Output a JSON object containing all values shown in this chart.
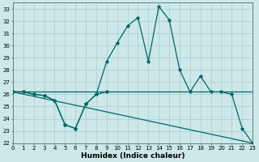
{
  "title": "",
  "xlabel": "Humidex (Indice chaleur)",
  "background_color": "#cce8e8",
  "grid_color": "#aacaca",
  "line_color": "#006868",
  "series_main": {
    "x": [
      0,
      1,
      2,
      3,
      4,
      5,
      6,
      7,
      8,
      9,
      10,
      11,
      12,
      13,
      14,
      15,
      16,
      17,
      18,
      19,
      20,
      21,
      22,
      23
    ],
    "y": [
      26.2,
      26.2,
      26.0,
      25.9,
      25.5,
      23.5,
      23.2,
      25.2,
      26.0,
      28.7,
      30.2,
      31.6,
      32.3,
      28.7,
      33.2,
      32.1,
      28.0,
      26.2,
      27.5,
      26.2,
      26.2,
      26.0,
      23.2,
      22.0
    ]
  },
  "series_flat": {
    "x": [
      0,
      23
    ],
    "y": [
      26.2,
      26.2
    ]
  },
  "series_diagonal": {
    "x": [
      0,
      23
    ],
    "y": [
      26.2,
      22.0
    ]
  },
  "series_lower": {
    "x": [
      0,
      1,
      2,
      3,
      4,
      5,
      6,
      7,
      8,
      9
    ],
    "y": [
      26.2,
      26.2,
      26.0,
      25.9,
      25.5,
      23.5,
      23.2,
      25.2,
      26.0,
      26.2
    ]
  },
  "xlim": [
    0,
    23
  ],
  "ylim": [
    22,
    33.5
  ],
  "yticks": [
    22,
    23,
    24,
    25,
    26,
    27,
    28,
    29,
    30,
    31,
    32,
    33
  ],
  "xticks": [
    0,
    1,
    2,
    3,
    4,
    5,
    6,
    7,
    8,
    9,
    10,
    11,
    12,
    13,
    14,
    15,
    16,
    17,
    18,
    19,
    20,
    21,
    22,
    23
  ],
  "xtick_labels": [
    "0",
    "1",
    "2",
    "3",
    "4",
    "5",
    "6",
    "7",
    "8",
    "9",
    "10",
    "11",
    "12",
    "13",
    "14",
    "15",
    "16",
    "17",
    "18",
    "19",
    "20",
    "21",
    "22",
    "23"
  ],
  "ytick_labels": [
    "22",
    "23",
    "24",
    "25",
    "26",
    "27",
    "28",
    "29",
    "30",
    "31",
    "32",
    "33"
  ],
  "tick_fontsize": 5.0,
  "xlabel_fontsize": 6.5
}
